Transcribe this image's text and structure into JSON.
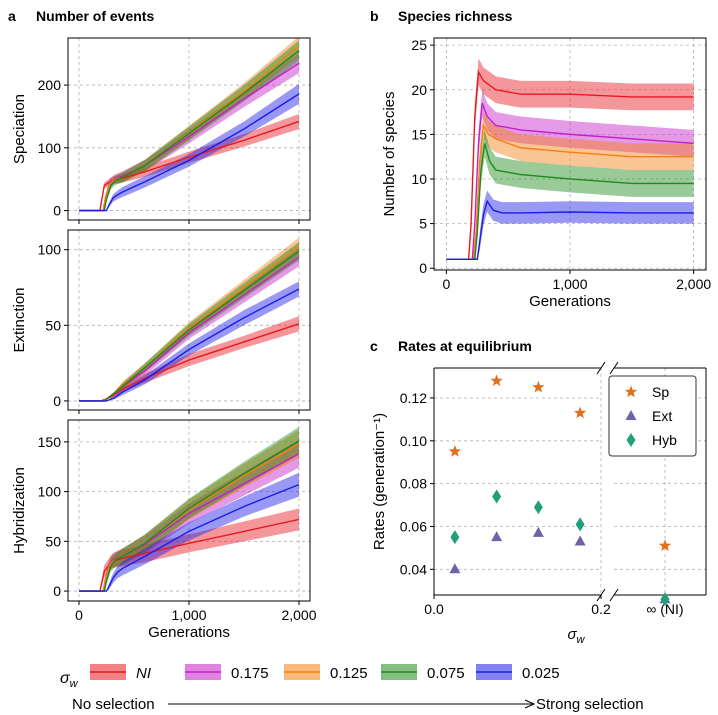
{
  "panels": {
    "a": {
      "letter": "a",
      "title": "Number of events"
    },
    "b": {
      "letter": "b",
      "title": "Species richness"
    },
    "c": {
      "letter": "c",
      "title": "Rates at equilibrium"
    }
  },
  "colors": {
    "NI": "#e8191e",
    "s0175": "#c51ec9",
    "s0125": "#f57f11",
    "s0075": "#1c8a1a",
    "s0025": "#1c1ce8",
    "sp": "#e07020",
    "ext": "#6e62a8",
    "hyb": "#1fa07a"
  },
  "legend": {
    "symbol": "σ",
    "symbol_sub": "w",
    "entries": [
      {
        "label": "NI",
        "italic": true
      },
      {
        "label": "0.175"
      },
      {
        "label": "0.125"
      },
      {
        "label": "0.075"
      },
      {
        "label": "0.025"
      }
    ],
    "arrow_left": "No selection",
    "arrow_right": "Strong selection"
  },
  "chart_data": [
    {
      "id": "speciation",
      "type": "line",
      "ylabel": "Speciation",
      "xlabel": "",
      "xlim": [
        -100,
        2100
      ],
      "ylim": [
        -15,
        275
      ],
      "yticks": [
        0,
        100,
        200
      ],
      "xticks": [
        0,
        1000,
        2000
      ],
      "series": [
        {
          "name": "NI",
          "x": [
            0,
            190,
            200,
            230,
            300,
            400,
            600,
            1000,
            1500,
            2000
          ],
          "y": [
            0,
            0,
            10,
            40,
            48,
            52,
            62,
            85,
            112,
            142
          ],
          "band": [
            0,
            0,
            2,
            5,
            6,
            7,
            8,
            9,
            10,
            12
          ]
        },
        {
          "name": "0.175",
          "x": [
            0,
            220,
            240,
            280,
            320,
            400,
            600,
            1000,
            1500,
            2000
          ],
          "y": [
            0,
            0,
            20,
            45,
            50,
            55,
            72,
            118,
            178,
            235
          ],
          "band": [
            0,
            0,
            3,
            6,
            7,
            8,
            9,
            11,
            13,
            16
          ]
        },
        {
          "name": "0.125",
          "x": [
            0,
            220,
            240,
            280,
            320,
            400,
            600,
            1000,
            1500,
            2000
          ],
          "y": [
            0,
            0,
            20,
            43,
            49,
            53,
            72,
            124,
            190,
            262
          ],
          "band": [
            0,
            0,
            3,
            6,
            7,
            8,
            9,
            11,
            13,
            16
          ]
        },
        {
          "name": "0.075",
          "x": [
            0,
            230,
            250,
            290,
            330,
            400,
            600,
            1000,
            1500,
            2000
          ],
          "y": [
            0,
            0,
            18,
            40,
            48,
            53,
            72,
            123,
            187,
            255
          ],
          "band": [
            0,
            0,
            3,
            6,
            7,
            8,
            9,
            11,
            13,
            16
          ]
        },
        {
          "name": "0.025",
          "x": [
            0,
            250,
            270,
            310,
            350,
            400,
            600,
            1000,
            1500,
            2000
          ],
          "y": [
            0,
            0,
            8,
            20,
            25,
            30,
            46,
            80,
            130,
            186
          ],
          "band": [
            0,
            0,
            3,
            6,
            7,
            8,
            9,
            10,
            12,
            16
          ]
        }
      ]
    },
    {
      "id": "extinction",
      "type": "line",
      "ylabel": "Extinction",
      "xlabel": "",
      "xlim": [
        -100,
        2100
      ],
      "ylim": [
        -6,
        113
      ],
      "yticks": [
        0,
        50,
        100
      ],
      "xticks": [
        0,
        1000,
        2000
      ],
      "series": [
        {
          "name": "NI",
          "x": [
            0,
            200,
            300,
            400,
            600,
            1000,
            1500,
            2000
          ],
          "y": [
            0,
            0,
            3,
            8,
            15,
            27,
            39,
            51
          ],
          "band": [
            0,
            0,
            1,
            2,
            3,
            4,
            4,
            5
          ]
        },
        {
          "name": "0.175",
          "x": [
            0,
            220,
            320,
            400,
            600,
            1000,
            1500,
            2000
          ],
          "y": [
            0,
            0,
            5,
            10,
            20,
            45,
            70,
            95
          ],
          "band": [
            0,
            0,
            1,
            2,
            3,
            4,
            5,
            6
          ]
        },
        {
          "name": "0.125",
          "x": [
            0,
            220,
            320,
            400,
            600,
            1000,
            1500,
            2000
          ],
          "y": [
            0,
            0,
            5,
            11,
            22,
            48,
            75,
            102
          ],
          "band": [
            0,
            0,
            1,
            2,
            3,
            4,
            5,
            6
          ]
        },
        {
          "name": "0.075",
          "x": [
            0,
            230,
            320,
            400,
            600,
            1000,
            1500,
            2000
          ],
          "y": [
            0,
            0,
            5,
            10,
            22,
            47,
            73,
            99
          ],
          "band": [
            0,
            0,
            1,
            2,
            3,
            4,
            5,
            6
          ]
        },
        {
          "name": "0.025",
          "x": [
            0,
            250,
            320,
            400,
            600,
            1000,
            1500,
            2000
          ],
          "y": [
            0,
            0,
            2,
            6,
            14,
            34,
            55,
            74
          ],
          "band": [
            0,
            0,
            1,
            2,
            3,
            4,
            5,
            5
          ]
        }
      ]
    },
    {
      "id": "hybridization",
      "type": "line",
      "ylabel": "Hybridization",
      "xlabel": "Generations",
      "xlim": [
        -100,
        2100
      ],
      "ylim": [
        -10,
        172
      ],
      "yticks": [
        0,
        50,
        100,
        150
      ],
      "xticks": [
        0,
        1000,
        2000
      ],
      "xticklabels": [
        "0",
        "1,000",
        "2,000"
      ],
      "series": [
        {
          "name": "NI",
          "x": [
            0,
            190,
            200,
            230,
            300,
            400,
            600,
            1000,
            1500,
            2000
          ],
          "y": [
            0,
            0,
            5,
            20,
            30,
            33,
            38,
            48,
            60,
            72
          ],
          "band": [
            0,
            0,
            3,
            6,
            7,
            8,
            9,
            9,
            10,
            11
          ]
        },
        {
          "name": "0.175",
          "x": [
            0,
            220,
            240,
            280,
            320,
            400,
            600,
            1000,
            1500,
            2000
          ],
          "y": [
            0,
            0,
            12,
            28,
            32,
            35,
            47,
            78,
            108,
            138
          ],
          "band": [
            0,
            0,
            3,
            6,
            7,
            8,
            9,
            10,
            12,
            14
          ]
        },
        {
          "name": "0.125",
          "x": [
            0,
            220,
            240,
            280,
            320,
            400,
            600,
            1000,
            1500,
            2000
          ],
          "y": [
            0,
            0,
            12,
            27,
            31,
            35,
            48,
            82,
            116,
            148
          ],
          "band": [
            0,
            0,
            3,
            6,
            7,
            8,
            9,
            10,
            12,
            14
          ]
        },
        {
          "name": "0.075",
          "x": [
            0,
            230,
            250,
            290,
            330,
            400,
            600,
            1000,
            1500,
            2000
          ],
          "y": [
            0,
            0,
            10,
            26,
            31,
            35,
            48,
            83,
            118,
            151
          ],
          "band": [
            0,
            0,
            3,
            6,
            7,
            8,
            9,
            10,
            12,
            14
          ]
        },
        {
          "name": "0.025",
          "x": [
            0,
            250,
            270,
            310,
            350,
            400,
            600,
            1000,
            1500,
            2000
          ],
          "y": [
            0,
            0,
            4,
            13,
            19,
            23,
            35,
            60,
            85,
            107
          ],
          "band": [
            0,
            0,
            3,
            5,
            6,
            7,
            8,
            9,
            10,
            12
          ]
        }
      ]
    },
    {
      "id": "richness",
      "type": "line",
      "ylabel": "Number of species",
      "xlabel": "Generations",
      "xlim": [
        -100,
        2100
      ],
      "ylim": [
        -0.2,
        25.8
      ],
      "yticks": [
        0,
        5,
        10,
        15,
        20,
        25
      ],
      "xticks": [
        0,
        1000,
        2000
      ],
      "xticklabels": [
        "0",
        "1,000",
        "2,000"
      ],
      "series": [
        {
          "name": "NI",
          "x": [
            0,
            180,
            200,
            230,
            260,
            300,
            400,
            600,
            1000,
            1500,
            2000
          ],
          "y": [
            1,
            1,
            5,
            17,
            22,
            21,
            20,
            19.5,
            19.5,
            19.2,
            19.2
          ],
          "band": [
            0,
            0,
            1,
            1.5,
            1.5,
            1.5,
            1.5,
            1.5,
            1.5,
            1.5,
            1.5
          ]
        },
        {
          "name": "0.175",
          "x": [
            0,
            210,
            230,
            260,
            290,
            330,
            400,
            600,
            1000,
            1500,
            2000
          ],
          "y": [
            1,
            1,
            5,
            14,
            18.5,
            17,
            16,
            15.5,
            15,
            14.5,
            14
          ],
          "band": [
            0,
            0,
            1,
            1.5,
            1.5,
            1.5,
            1.5,
            1.5,
            1.5,
            1.5,
            1.5
          ]
        },
        {
          "name": "0.125",
          "x": [
            0,
            220,
            240,
            270,
            300,
            340,
            400,
            600,
            1000,
            1500,
            2000
          ],
          "y": [
            1,
            1,
            4,
            12,
            16,
            15,
            14.5,
            13.5,
            13,
            12.5,
            12.5
          ],
          "band": [
            0,
            0,
            1,
            1.5,
            1.5,
            1.5,
            1.5,
            1.5,
            1.5,
            1.5,
            1.5
          ]
        },
        {
          "name": "0.075",
          "x": [
            0,
            230,
            250,
            280,
            310,
            350,
            400,
            600,
            1000,
            1500,
            2000
          ],
          "y": [
            1,
            1,
            4,
            11,
            14,
            12,
            11,
            10.5,
            10,
            9.5,
            9.5
          ],
          "band": [
            0,
            0,
            1,
            1.5,
            1.5,
            1.5,
            1.5,
            1.5,
            1.5,
            1.5,
            1.5
          ]
        },
        {
          "name": "0.025",
          "x": [
            0,
            250,
            270,
            300,
            330,
            380,
            450,
            600,
            1000,
            1500,
            2000
          ],
          "y": [
            1,
            1,
            3,
            6,
            7.5,
            6.5,
            6.2,
            6.2,
            6.3,
            6.2,
            6.2
          ],
          "band": [
            0,
            0,
            1,
            1.2,
            1.2,
            1.2,
            1.2,
            1.2,
            1.2,
            1.2,
            1.2
          ]
        }
      ]
    },
    {
      "id": "rates",
      "type": "scatter",
      "ylabel": "Rates (generation⁻¹)",
      "xlabel": "σ",
      "xlabel_sub": "w",
      "xlim": [
        0,
        0.2
      ],
      "ylim": [
        0.028,
        0.134
      ],
      "yticks": [
        0.04,
        0.06,
        0.08,
        0.1,
        0.12
      ],
      "yticklabels": [
        "0.04",
        "0.06",
        "0.08",
        "0.10",
        "0.12"
      ],
      "xticks": [
        0.0,
        0.2
      ],
      "xticklabels": [
        "0.0",
        "0.2"
      ],
      "right_tick_label": "∞ (NI)",
      "series": [
        {
          "name": "Sp",
          "marker": "star",
          "x": [
            0.025,
            0.075,
            0.125,
            0.175
          ],
          "y": [
            0.095,
            0.128,
            0.125,
            0.113
          ],
          "ni": 0.051
        },
        {
          "name": "Ext",
          "marker": "triangle",
          "x": [
            0.025,
            0.075,
            0.125,
            0.175
          ],
          "y": [
            0.04,
            0.055,
            0.057,
            0.053
          ],
          "ni": 0.026
        },
        {
          "name": "Hyb",
          "marker": "diamond",
          "x": [
            0.025,
            0.075,
            0.125,
            0.175
          ],
          "y": [
            0.055,
            0.074,
            0.069,
            0.061
          ],
          "ni": 0.026
        }
      ]
    }
  ]
}
